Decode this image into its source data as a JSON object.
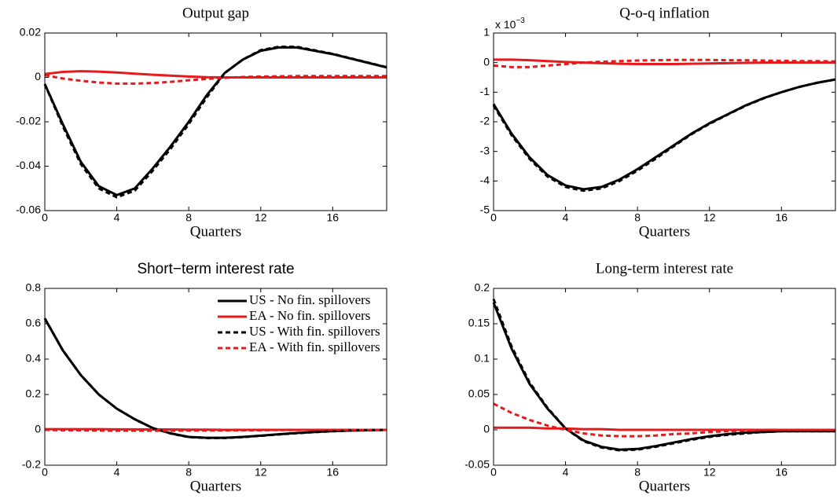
{
  "chart_data": [
    {
      "type": "line",
      "title": "Output gap",
      "x_label": "Quarters",
      "x": [
        0,
        1,
        2,
        3,
        4,
        5,
        6,
        7,
        8,
        9,
        10,
        11,
        12,
        13,
        14,
        15,
        16,
        17,
        18,
        19
      ],
      "xlim": [
        0,
        19
      ],
      "xticks": [
        0,
        4,
        8,
        12,
        16
      ],
      "ylim": [
        -0.06,
        0.02
      ],
      "yticks": [
        -0.06,
        -0.04,
        -0.02,
        0,
        0.02
      ],
      "series": [
        {
          "color": "#000000",
          "style": "solid",
          "values": [
            -0.003,
            -0.021,
            -0.038,
            -0.049,
            -0.053,
            -0.05,
            -0.041,
            -0.031,
            -0.02,
            -0.008,
            0.002,
            0.008,
            0.012,
            0.0135,
            0.0135,
            0.012,
            0.0105,
            0.0085,
            0.0065,
            0.0045
          ]
        },
        {
          "color": "#e41a1c",
          "style": "solid",
          "values": [
            0.0015,
            0.0025,
            0.0028,
            0.0026,
            0.0022,
            0.0017,
            0.0012,
            0.0008,
            0.0004,
            0.0001,
            0,
            0,
            0,
            0,
            0,
            0,
            0,
            0,
            0,
            0
          ]
        },
        {
          "color": "#000000",
          "style": "dashed",
          "values": [
            -0.003,
            -0.022,
            -0.039,
            -0.05,
            -0.054,
            -0.051,
            -0.042,
            -0.032,
            -0.021,
            -0.009,
            0.002,
            0.008,
            0.0123,
            0.0138,
            0.0138,
            0.0122,
            0.0106,
            0.0086,
            0.0066,
            0.0046
          ]
        },
        {
          "color": "#e41a1c",
          "style": "dashed",
          "values": [
            0.001,
            -0.0005,
            -0.0015,
            -0.0023,
            -0.0028,
            -0.0028,
            -0.0025,
            -0.002,
            -0.0013,
            -0.0007,
            -0.0002,
            0.0002,
            0.0004,
            0.0005,
            0.0006,
            0.0006,
            0.0006,
            0.0006,
            0.0006,
            0.0006
          ]
        }
      ]
    },
    {
      "type": "line",
      "title": "Q-o-q inflation",
      "x_label": "Quarters",
      "annotation": "x 10",
      "annotation_exponent": "−3",
      "x": [
        0,
        1,
        2,
        3,
        4,
        5,
        6,
        7,
        8,
        9,
        10,
        11,
        12,
        13,
        14,
        15,
        16,
        17,
        18,
        19
      ],
      "xlim": [
        0,
        19
      ],
      "xticks": [
        0,
        4,
        8,
        12,
        16
      ],
      "ylim": [
        -5,
        1
      ],
      "yticks": [
        -5,
        -4,
        -3,
        -2,
        -1,
        0,
        1
      ],
      "series": [
        {
          "color": "#000000",
          "style": "solid",
          "values": [
            -1.4,
            -2.4,
            -3.2,
            -3.8,
            -4.15,
            -4.28,
            -4.2,
            -3.95,
            -3.6,
            -3.2,
            -2.8,
            -2.4,
            -2.05,
            -1.75,
            -1.45,
            -1.2,
            -1.0,
            -0.82,
            -0.68,
            -0.57
          ]
        },
        {
          "color": "#e41a1c",
          "style": "solid",
          "values": [
            0.1,
            0.1,
            0.08,
            0.05,
            0.02,
            0,
            -0.02,
            -0.04,
            -0.05,
            -0.05,
            -0.05,
            -0.04,
            -0.03,
            -0.02,
            -0.01,
            0,
            0,
            0,
            0,
            0
          ]
        },
        {
          "color": "#000000",
          "style": "dashed",
          "values": [
            -1.45,
            -2.45,
            -3.25,
            -3.85,
            -4.2,
            -4.33,
            -4.25,
            -4.0,
            -3.65,
            -3.25,
            -2.83,
            -2.42,
            -2.07,
            -1.76,
            -1.46,
            -1.21,
            -1.0,
            -0.82,
            -0.68,
            -0.57
          ]
        },
        {
          "color": "#e41a1c",
          "style": "dashed",
          "values": [
            -0.1,
            -0.15,
            -0.15,
            -0.1,
            -0.05,
            0,
            0.03,
            0.05,
            0.07,
            0.08,
            0.09,
            0.09,
            0.09,
            0.08,
            0.08,
            0.07,
            0.06,
            0.05,
            0.05,
            0.04
          ]
        }
      ]
    },
    {
      "type": "line",
      "title": "Short−term interest rate",
      "x_label": "Quarters",
      "legend": "upper right",
      "x": [
        0,
        1,
        2,
        3,
        4,
        5,
        6,
        7,
        8,
        9,
        10,
        11,
        12,
        13,
        14,
        15,
        16,
        17,
        18,
        19
      ],
      "xlim": [
        0,
        19
      ],
      "xticks": [
        0,
        4,
        8,
        12,
        16
      ],
      "ylim": [
        -0.2,
        0.8
      ],
      "yticks": [
        -0.2,
        0,
        0.2,
        0.4,
        0.6,
        0.8
      ],
      "series": [
        {
          "name": "US - No fin. spillovers",
          "color": "#000000",
          "style": "solid",
          "values": [
            0.63,
            0.45,
            0.31,
            0.2,
            0.12,
            0.06,
            0.01,
            -0.02,
            -0.04,
            -0.045,
            -0.045,
            -0.04,
            -0.033,
            -0.025,
            -0.018,
            -0.012,
            -0.007,
            -0.004,
            -0.002,
            0
          ]
        },
        {
          "name": "EA - No fin. spillovers",
          "color": "#e41a1c",
          "style": "solid",
          "values": [
            0.004,
            0.004,
            0.004,
            0.004,
            0.003,
            0.003,
            0.002,
            0.002,
            0.001,
            0.001,
            0,
            0,
            0,
            0,
            0,
            0,
            0,
            0,
            0,
            0
          ]
        },
        {
          "name": "US - With fin. spillovers",
          "color": "#000000",
          "style": "dashed",
          "values": [
            0.63,
            0.45,
            0.31,
            0.2,
            0.12,
            0.06,
            0.01,
            -0.021,
            -0.041,
            -0.046,
            -0.046,
            -0.041,
            -0.034,
            -0.026,
            -0.019,
            -0.013,
            -0.008,
            -0.004,
            -0.002,
            0
          ]
        },
        {
          "name": "EA - With fin. spillovers",
          "color": "#e41a1c",
          "style": "dashed",
          "values": [
            0,
            -0.002,
            -0.003,
            -0.004,
            -0.005,
            -0.005,
            -0.005,
            -0.005,
            -0.004,
            -0.004,
            -0.003,
            -0.002,
            -0.002,
            -0.001,
            -0.001,
            0,
            0,
            0,
            0,
            0
          ]
        }
      ]
    },
    {
      "type": "line",
      "title": "Long-term interest rate",
      "x_label": "Quarters",
      "x": [
        0,
        1,
        2,
        3,
        4,
        5,
        6,
        7,
        8,
        9,
        10,
        11,
        12,
        13,
        14,
        15,
        16,
        17,
        18,
        19
      ],
      "xlim": [
        0,
        19
      ],
      "xticks": [
        0,
        4,
        8,
        12,
        16
      ],
      "ylim": [
        -0.05,
        0.2
      ],
      "yticks": [
        -0.05,
        0,
        0.05,
        0.1,
        0.15,
        0.2
      ],
      "series": [
        {
          "color": "#000000",
          "style": "solid",
          "values": [
            0.18,
            0.115,
            0.065,
            0.03,
            0.002,
            -0.015,
            -0.024,
            -0.028,
            -0.027,
            -0.023,
            -0.018,
            -0.013,
            -0.009,
            -0.006,
            -0.004,
            -0.003,
            -0.002,
            -0.002,
            -0.002,
            -0.002
          ]
        },
        {
          "color": "#e41a1c",
          "style": "solid",
          "values": [
            0.003,
            0.003,
            0.003,
            0.002,
            0.002,
            0.001,
            0.001,
            0,
            0,
            0,
            0,
            0,
            0,
            0,
            0,
            0,
            0,
            0,
            0,
            0
          ]
        },
        {
          "color": "#000000",
          "style": "dashed",
          "values": [
            0.185,
            0.118,
            0.067,
            0.031,
            0.002,
            -0.016,
            -0.025,
            -0.029,
            -0.028,
            -0.024,
            -0.019,
            -0.014,
            -0.01,
            -0.007,
            -0.005,
            -0.003,
            -0.002,
            -0.002,
            -0.002,
            -0.002
          ]
        },
        {
          "color": "#e41a1c",
          "style": "dashed",
          "values": [
            0.037,
            0.024,
            0.014,
            0.006,
            0,
            -0.005,
            -0.008,
            -0.009,
            -0.009,
            -0.008,
            -0.006,
            -0.005,
            -0.003,
            -0.002,
            -0.001,
            0,
            0,
            0,
            0,
            0
          ]
        }
      ]
    }
  ]
}
